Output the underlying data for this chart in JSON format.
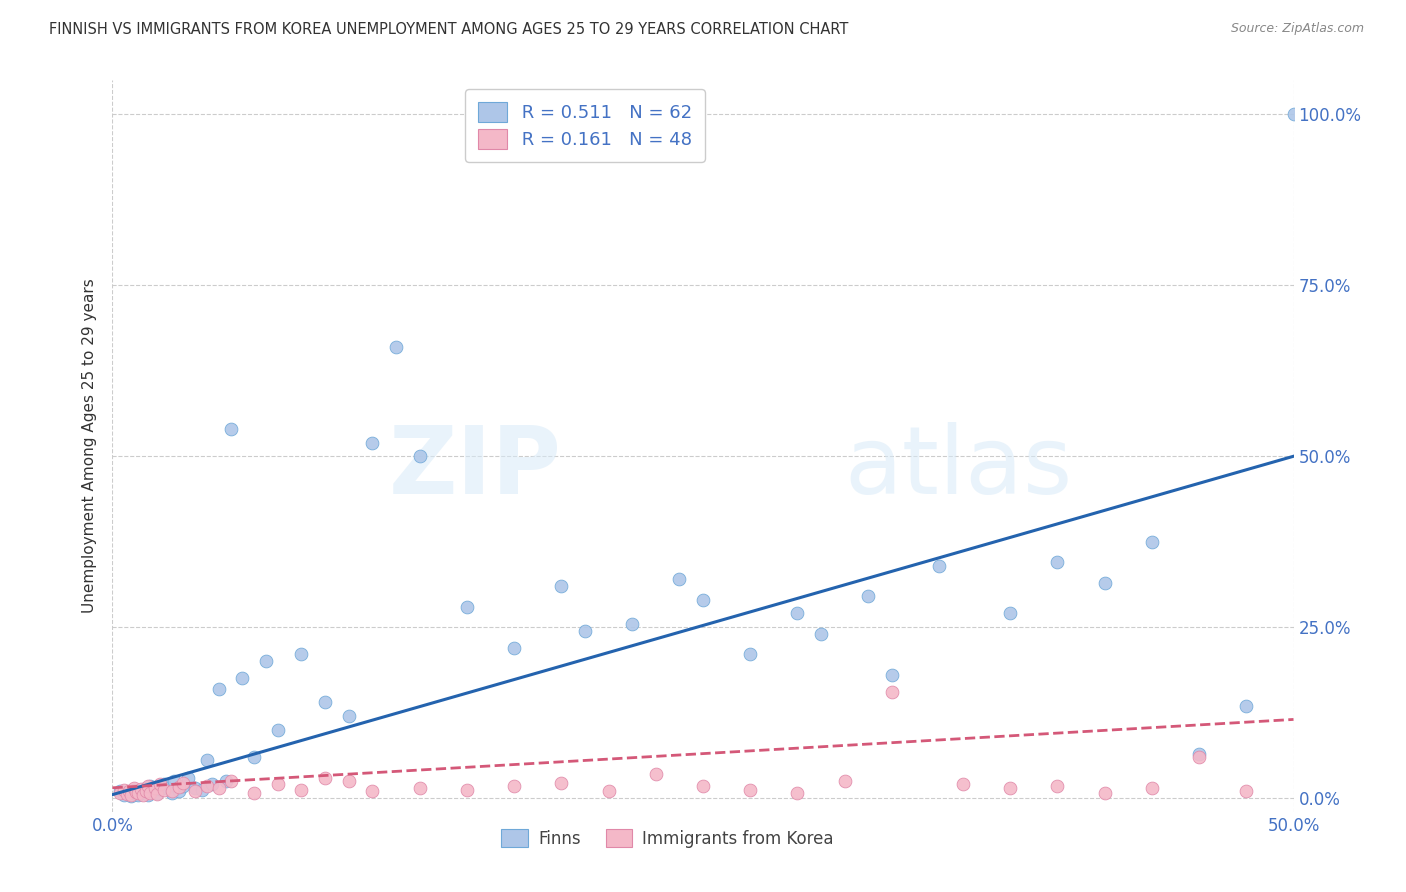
{
  "title": "FINNISH VS IMMIGRANTS FROM KOREA UNEMPLOYMENT AMONG AGES 25 TO 29 YEARS CORRELATION CHART",
  "source": "Source: ZipAtlas.com",
  "ylabel": "Unemployment Among Ages 25 to 29 years",
  "xlim": [
    0.0,
    0.5
  ],
  "ylim": [
    -0.02,
    1.05
  ],
  "ytick_labels": [
    "0.0%",
    "25.0%",
    "50.0%",
    "75.0%",
    "100.0%"
  ],
  "ytick_vals": [
    0.0,
    0.25,
    0.5,
    0.75,
    1.0
  ],
  "xtick_labels": [
    "0.0%",
    "50.0%"
  ],
  "xtick_vals": [
    0.0,
    0.5
  ],
  "legend_r_finn": "R = 0.511",
  "legend_n_finn": "N = 62",
  "legend_r_korea": "R = 0.161",
  "legend_n_korea": "N = 48",
  "watermark_zip": "ZIP",
  "watermark_atlas": "atlas",
  "finn_color": "#aec6e8",
  "finn_edge_color": "#6fa8d8",
  "finn_line_color": "#2463ae",
  "korea_color": "#f4b8c8",
  "korea_edge_color": "#e088a8",
  "korea_line_color": "#d45878",
  "finn_trendline_x": [
    0.0,
    0.5
  ],
  "finn_trendline_y": [
    0.005,
    0.5
  ],
  "korea_trendline_x": [
    0.0,
    0.5
  ],
  "korea_trendline_y": [
    0.015,
    0.115
  ],
  "grid_color": "#cccccc",
  "background_color": "#ffffff",
  "title_color": "#333333",
  "right_axis_color": "#4472c4",
  "label_color": "#555555",
  "finn_scatter_x": [
    0.003,
    0.005,
    0.007,
    0.008,
    0.009,
    0.01,
    0.01,
    0.011,
    0.012,
    0.013,
    0.014,
    0.015,
    0.015,
    0.016,
    0.017,
    0.018,
    0.019,
    0.02,
    0.022,
    0.023,
    0.025,
    0.026,
    0.028,
    0.03,
    0.032,
    0.035,
    0.038,
    0.04,
    0.042,
    0.045,
    0.048,
    0.05,
    0.055,
    0.06,
    0.065,
    0.07,
    0.08,
    0.09,
    0.1,
    0.11,
    0.12,
    0.13,
    0.15,
    0.17,
    0.19,
    0.2,
    0.22,
    0.24,
    0.25,
    0.27,
    0.29,
    0.3,
    0.32,
    0.33,
    0.35,
    0.38,
    0.4,
    0.42,
    0.44,
    0.46,
    0.48,
    0.5
  ],
  "finn_scatter_y": [
    0.01,
    0.005,
    0.008,
    0.003,
    0.012,
    0.006,
    0.009,
    0.004,
    0.007,
    0.011,
    0.015,
    0.008,
    0.005,
    0.018,
    0.012,
    0.009,
    0.007,
    0.013,
    0.02,
    0.015,
    0.008,
    0.025,
    0.01,
    0.018,
    0.03,
    0.015,
    0.012,
    0.055,
    0.02,
    0.16,
    0.025,
    0.54,
    0.175,
    0.06,
    0.2,
    0.1,
    0.21,
    0.14,
    0.12,
    0.52,
    0.66,
    0.5,
    0.28,
    0.22,
    0.31,
    0.245,
    0.255,
    0.32,
    0.29,
    0.21,
    0.27,
    0.24,
    0.295,
    0.18,
    0.34,
    0.27,
    0.345,
    0.315,
    0.375,
    0.065,
    0.135,
    1.0
  ],
  "korea_scatter_x": [
    0.003,
    0.005,
    0.006,
    0.007,
    0.008,
    0.009,
    0.01,
    0.011,
    0.012,
    0.013,
    0.014,
    0.015,
    0.016,
    0.018,
    0.019,
    0.02,
    0.022,
    0.025,
    0.028,
    0.03,
    0.035,
    0.04,
    0.045,
    0.05,
    0.06,
    0.07,
    0.08,
    0.09,
    0.1,
    0.11,
    0.13,
    0.15,
    0.17,
    0.19,
    0.21,
    0.23,
    0.25,
    0.27,
    0.29,
    0.31,
    0.33,
    0.36,
    0.38,
    0.4,
    0.42,
    0.44,
    0.46,
    0.48
  ],
  "korea_scatter_y": [
    0.008,
    0.012,
    0.006,
    0.01,
    0.004,
    0.015,
    0.009,
    0.007,
    0.013,
    0.005,
    0.011,
    0.018,
    0.008,
    0.014,
    0.006,
    0.02,
    0.012,
    0.01,
    0.016,
    0.022,
    0.01,
    0.018,
    0.015,
    0.025,
    0.008,
    0.02,
    0.012,
    0.03,
    0.025,
    0.01,
    0.015,
    0.012,
    0.018,
    0.022,
    0.01,
    0.035,
    0.018,
    0.012,
    0.008,
    0.025,
    0.155,
    0.02,
    0.015,
    0.018,
    0.008,
    0.015,
    0.06,
    0.01
  ]
}
